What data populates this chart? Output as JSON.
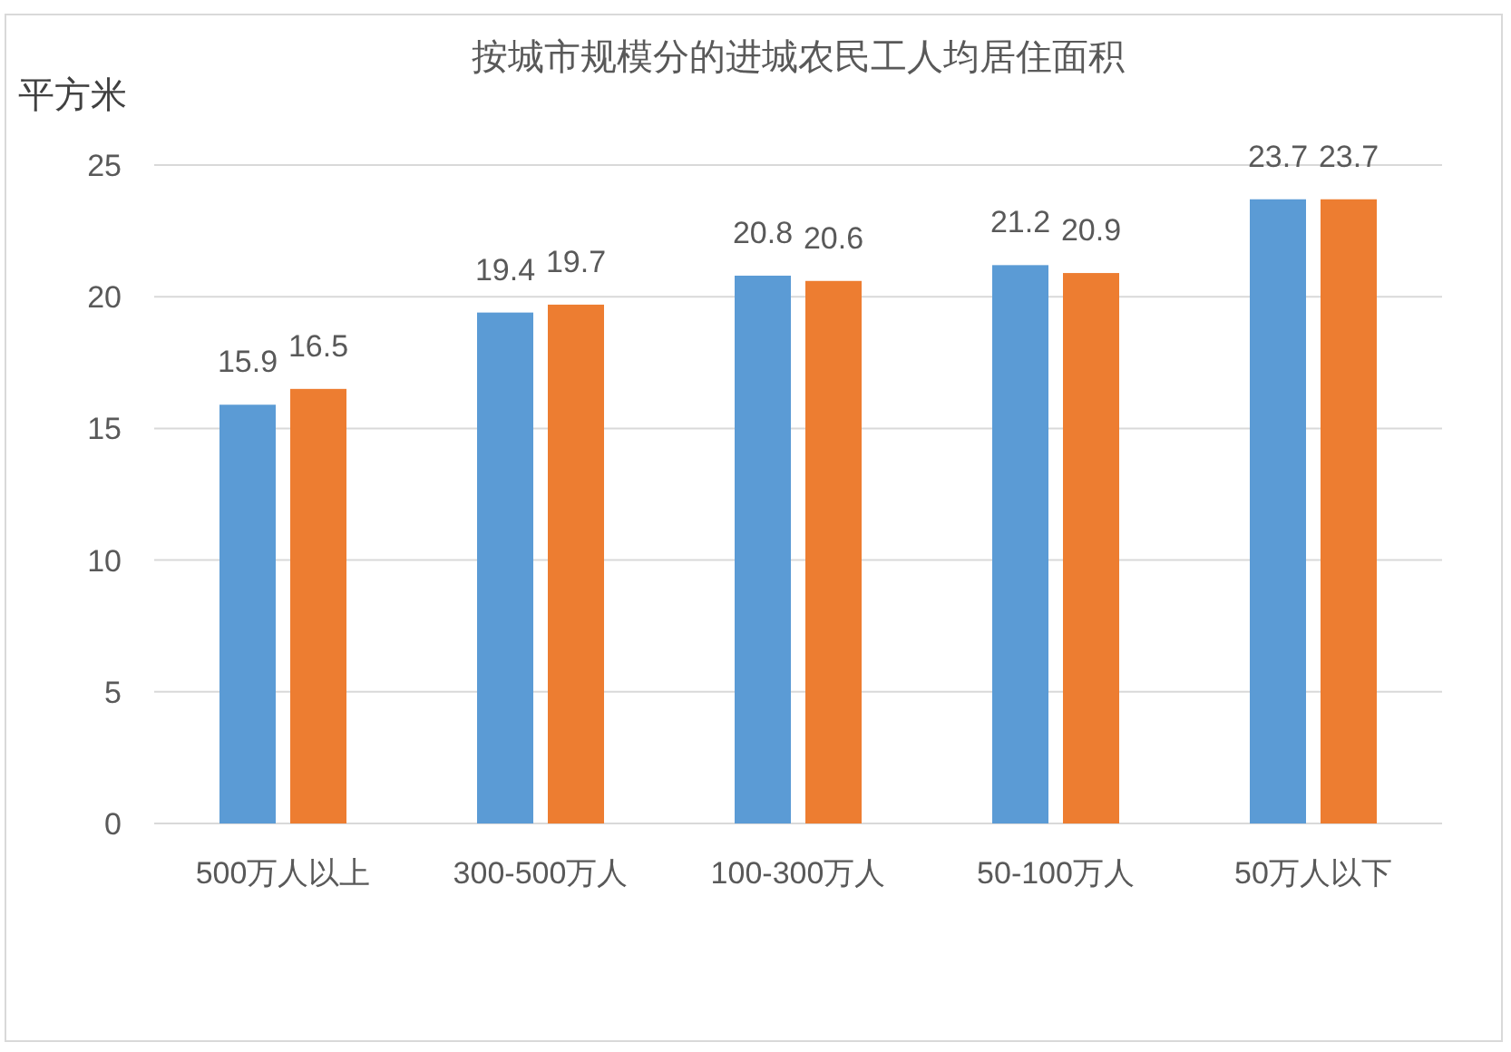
{
  "chart_data": {
    "type": "bar",
    "title": "按城市规模分的进城农民工人均居住面积",
    "ylabel": "平方米",
    "categories": [
      "500万人以上",
      "300-500万人",
      "100-300万人",
      "50-100万人",
      "50万人以下"
    ],
    "series": [
      {
        "color": "#5b9bd5",
        "values": [
          15.9,
          19.4,
          20.8,
          21.2,
          23.7
        ]
      },
      {
        "color": "#ed7d31",
        "values": [
          16.5,
          19.7,
          20.6,
          20.9,
          23.7
        ]
      }
    ],
    "ylim": [
      0,
      25
    ],
    "yticks": [
      0,
      5,
      10,
      15,
      20,
      25
    ],
    "grid": "y",
    "data_labels": true
  }
}
